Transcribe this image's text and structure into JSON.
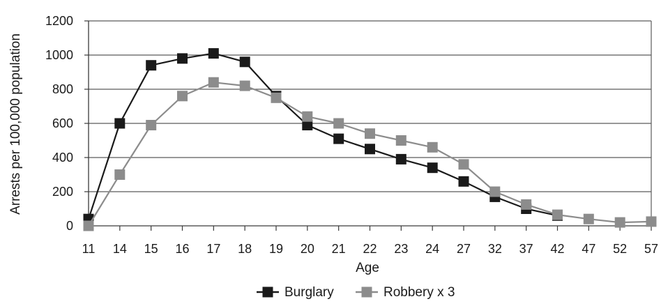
{
  "chart_data": {
    "type": "line",
    "title": "",
    "xlabel": "Age",
    "ylabel": "Arrests per 100,000 population",
    "categories": [
      "11",
      "14",
      "15",
      "16",
      "17",
      "18",
      "19",
      "20",
      "21",
      "22",
      "23",
      "24",
      "27",
      "32",
      "37",
      "42",
      "47",
      "52",
      "57"
    ],
    "ylim": [
      0,
      1200
    ],
    "yticks": [
      0,
      200,
      400,
      600,
      800,
      1000,
      1200
    ],
    "grid": "horizontal",
    "legend": "bottom-center",
    "series": [
      {
        "name": "Burglary",
        "color": "#1a1a1a",
        "marker": "square",
        "values": [
          40,
          600,
          940,
          980,
          1010,
          960,
          760,
          590,
          510,
          450,
          390,
          340,
          260,
          170,
          100,
          60,
          null,
          null,
          null
        ]
      },
      {
        "name": "Robbery x 3",
        "color": "#8c8c8c",
        "marker": "square",
        "values": [
          0,
          300,
          590,
          760,
          840,
          820,
          750,
          640,
          600,
          540,
          500,
          460,
          360,
          200,
          125,
          65,
          40,
          20,
          25
        ]
      }
    ]
  }
}
